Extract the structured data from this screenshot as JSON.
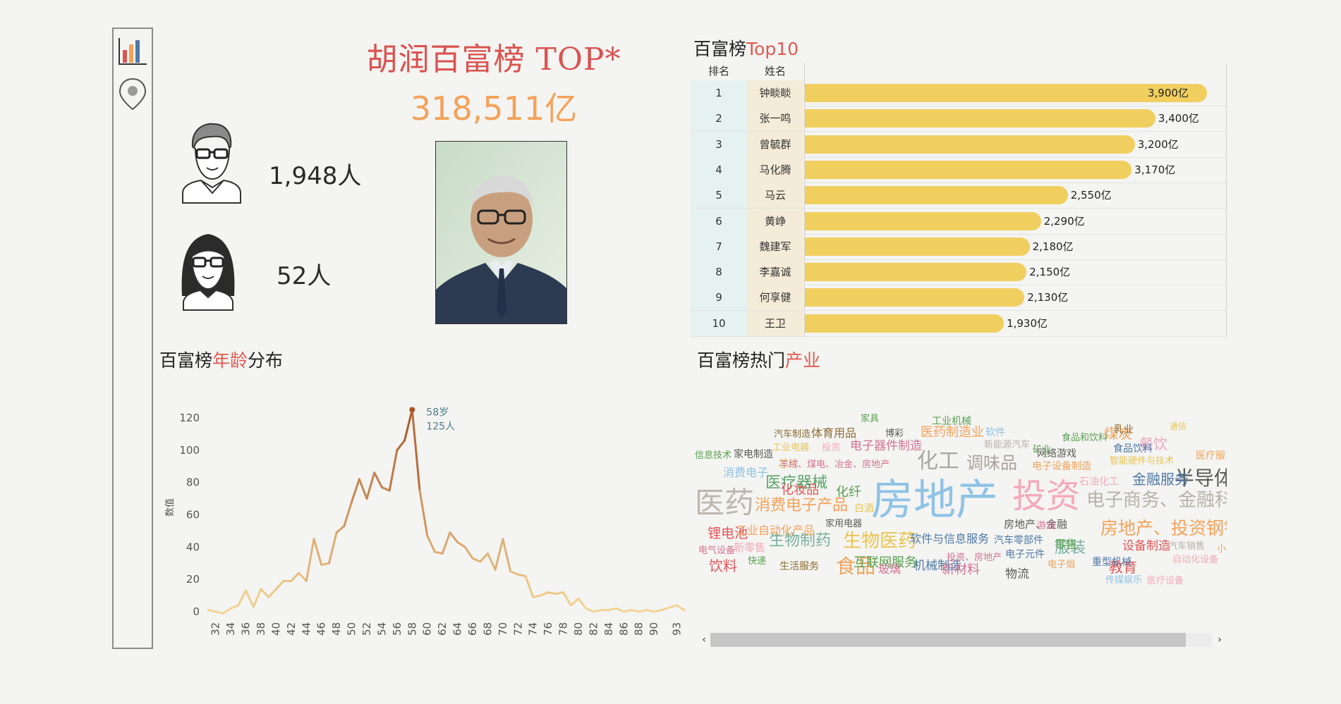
{
  "sidebar": {
    "items": [
      {
        "icon": "bar-chart-icon"
      },
      {
        "icon": "location-pin-icon"
      }
    ]
  },
  "header": {
    "title": "胡润百富榜 TOP*",
    "total": "318,511亿"
  },
  "gender": {
    "male_count": "1,948人",
    "female_count": "52人"
  },
  "top10": {
    "title_prefix": "百富榜",
    "title_highlight": "Top10",
    "col_rank": "排名",
    "col_name": "姓名",
    "rows": [
      {
        "rank": "1",
        "name": "钟睒睒",
        "value": 3900,
        "label": "3,900亿"
      },
      {
        "rank": "2",
        "name": "张一鸣",
        "value": 3400,
        "label": "3,400亿"
      },
      {
        "rank": "3",
        "name": "曾毓群",
        "value": 3200,
        "label": "3,200亿"
      },
      {
        "rank": "4",
        "name": "马化腾",
        "value": 3170,
        "label": "3,170亿"
      },
      {
        "rank": "5",
        "name": "马云",
        "value": 2550,
        "label": "2,550亿"
      },
      {
        "rank": "6",
        "name": "黄峥",
        "value": 2290,
        "label": "2,290亿"
      },
      {
        "rank": "7",
        "name": "魏建军",
        "value": 2180,
        "label": "2,180亿"
      },
      {
        "rank": "8",
        "name": "李嘉诚",
        "value": 2150,
        "label": "2,150亿"
      },
      {
        "rank": "9",
        "name": "何享健",
        "value": 2130,
        "label": "2,130亿"
      },
      {
        "rank": "10",
        "name": "王卫",
        "value": 1930,
        "label": "1,930亿"
      }
    ],
    "bar_color": "#f0cf5f"
  },
  "age_section": {
    "title_prefix": "百富榜",
    "title_highlight": "年龄",
    "title_suffix": "分布"
  },
  "industry_section": {
    "title_prefix": "百富榜热门",
    "title_highlight": "产业"
  },
  "chart_data": {
    "type": "line",
    "ylabel": "数值",
    "ylim": [
      0,
      130
    ],
    "yticks": [
      0,
      20,
      40,
      60,
      80,
      100,
      120
    ],
    "xticks": [
      "32",
      "34",
      "36",
      "38",
      "40",
      "42",
      "44",
      "46",
      "48",
      "50",
      "52",
      "54",
      "56",
      "58",
      "60",
      "62",
      "64",
      "66",
      "68",
      "70",
      "72",
      "74",
      "76",
      "78",
      "80",
      "82",
      "84",
      "86",
      "88",
      "90",
      "93"
    ],
    "x": [
      "31",
      "32",
      "33",
      "34",
      "35",
      "36",
      "37",
      "38",
      "39",
      "40",
      "41",
      "42",
      "43",
      "44",
      "45",
      "46",
      "47",
      "48",
      "49",
      "50",
      "51",
      "52",
      "53",
      "54",
      "55",
      "56",
      "57",
      "58",
      "59",
      "60",
      "61",
      "62",
      "63",
      "64",
      "65",
      "66",
      "67",
      "68",
      "69",
      "70",
      "71",
      "72",
      "73",
      "74",
      "75",
      "76",
      "77",
      "78",
      "79",
      "80",
      "81",
      "82",
      "83",
      "84",
      "85",
      "86",
      "87",
      "88",
      "89",
      "90",
      "91",
      "93",
      "94"
    ],
    "values": [
      1,
      0,
      -1,
      2,
      4,
      13,
      3,
      14,
      9,
      14,
      19,
      19,
      24,
      19,
      45,
      29,
      30,
      49,
      53,
      68,
      82,
      70,
      86,
      77,
      75,
      100,
      106,
      125,
      75,
      47,
      37,
      36,
      49,
      43,
      40,
      33,
      31,
      36,
      26,
      45,
      25,
      23,
      22,
      9,
      10,
      12,
      11,
      12,
      4,
      8,
      2,
      0,
      1,
      1,
      2,
      0,
      1,
      0,
      1,
      0,
      1,
      4,
      1
    ],
    "annotation": {
      "age": "58岁",
      "count": "125人"
    },
    "grid": false
  },
  "wordcloud": [
    {
      "text": "房地产",
      "size": 60,
      "color": "#8ec3e6"
    },
    {
      "text": "投资",
      "size": 48,
      "color": "#f4a9b8"
    },
    {
      "text": "医药",
      "size": 42,
      "color": "#bdb6ae"
    },
    {
      "text": "化工",
      "size": 30,
      "color": "#a7a7a7"
    },
    {
      "text": "调味品",
      "size": 24,
      "color": "#a9a49c"
    },
    {
      "text": "半导体",
      "size": 28,
      "color": "#5a5a5a"
    },
    {
      "text": "生物医药",
      "size": 26,
      "color": "#e9c550"
    },
    {
      "text": "食品",
      "size": 28,
      "color": "#f0a35a"
    },
    {
      "text": "电子商务、金融科技",
      "size": 26,
      "color": "#b8b2ab"
    },
    {
      "text": "房地产、投资钢铁",
      "size": 25,
      "color": "#f4a259"
    },
    {
      "text": "医疗器械",
      "size": 22,
      "color": "#5aa469"
    },
    {
      "text": "消费电子产品",
      "size": 22,
      "color": "#f4a259"
    },
    {
      "text": "生物制药",
      "size": 22,
      "color": "#7ab0a0"
    },
    {
      "text": "服装",
      "size": 22,
      "color": "#7ab0a0"
    },
    {
      "text": "煤炭",
      "size": 20,
      "color": "#f0a35a"
    },
    {
      "text": "金融服务",
      "size": 20,
      "color": "#4e79a7"
    },
    {
      "text": "餐饮",
      "size": 20,
      "color": "#e9a8c0"
    },
    {
      "text": "教育",
      "size": 20,
      "color": "#e15759"
    },
    {
      "text": "锂电池",
      "size": 19,
      "color": "#e15759"
    },
    {
      "text": "化纤",
      "size": 18,
      "color": "#59a14f"
    },
    {
      "text": "医药制造业",
      "size": 18,
      "color": "#f4a259"
    },
    {
      "text": "电子器件制造",
      "size": 17,
      "color": "#d37295"
    },
    {
      "text": "饮料",
      "size": 20,
      "color": "#e15759"
    },
    {
      "text": "化妆品",
      "size": 18,
      "color": "#e15759"
    },
    {
      "text": "互联网服务",
      "size": 18,
      "color": "#59a14f"
    },
    {
      "text": "机械制造",
      "size": 17,
      "color": "#4e79a7"
    },
    {
      "text": "新材料",
      "size": 18,
      "color": "#d37295"
    },
    {
      "text": "软件与信息服务",
      "size": 16,
      "color": "#4e79a7"
    },
    {
      "text": "体育用品",
      "size": 16,
      "color": "#8c6d31"
    },
    {
      "text": "玻璃",
      "size": 16,
      "color": "#d37295"
    },
    {
      "text": "物流",
      "size": 17,
      "color": "#5a5a5a"
    },
    {
      "text": "设备制造",
      "size": 17,
      "color": "#e15759"
    },
    {
      "text": "工业自动化产品",
      "size": 16,
      "color": "#f4a259"
    },
    {
      "text": "零售",
      "size": 16,
      "color": "#59a14f"
    },
    {
      "text": "消费电子",
      "size": 16,
      "color": "#8ec3e6"
    },
    {
      "text": "网络游戏",
      "size": 14,
      "color": "#5a5a5a"
    },
    {
      "text": "食品饮料",
      "size": 14,
      "color": "#4e79a7"
    },
    {
      "text": "汽车零部件",
      "size": 14,
      "color": "#4e79a7"
    },
    {
      "text": "重型机械",
      "size": 14,
      "color": "#4e79a7"
    },
    {
      "text": "电子元件",
      "size": 14,
      "color": "#4e79a7"
    },
    {
      "text": "房地产、金融",
      "size": 15,
      "color": "#5a5a5a"
    },
    {
      "text": "家电制造",
      "size": 14,
      "color": "#5a5a5a"
    },
    {
      "text": "工业机械",
      "size": 14,
      "color": "#59a14f"
    },
    {
      "text": "新零售",
      "size": 15,
      "color": "#f4a9b8"
    },
    {
      "text": "生活服务",
      "size": 14,
      "color": "#8c6d31"
    },
    {
      "text": "白酒",
      "size": 14,
      "color": "#e9c550"
    },
    {
      "text": "家用电器",
      "size": 13,
      "color": "#5a5a5a"
    },
    {
      "text": "芯片",
      "size": 14,
      "color": "#e9c550"
    },
    {
      "text": "汽车制造",
      "size": 13,
      "color": "#8c6d31"
    },
    {
      "text": "信息技术",
      "size": 13,
      "color": "#59a14f"
    },
    {
      "text": "电子设备制造",
      "size": 14,
      "color": "#f0a35a"
    },
    {
      "text": "新能源汽车",
      "size": 13,
      "color": "#b8b2ab"
    },
    {
      "text": "食品和饮料",
      "size": 13,
      "color": "#59a14f"
    },
    {
      "text": "智能硬件与技术",
      "size": 13,
      "color": "#e9c550"
    },
    {
      "text": "石油化工",
      "size": 14,
      "color": "#f4a9b8"
    },
    {
      "text": "医疗服",
      "size": 14,
      "color": "#f0a35a"
    },
    {
      "text": "投资、房地产",
      "size": 13,
      "color": "#d37295"
    },
    {
      "text": "羊绒、煤电、冶金、房地产",
      "size": 13,
      "color": "#d37295"
    },
    {
      "text": "电子烟",
      "size": 13,
      "color": "#f0a35a"
    },
    {
      "text": "传媒娱乐",
      "size": 13,
      "color": "#8ec3e6"
    },
    {
      "text": "医疗设备",
      "size": 13,
      "color": "#f4a9b8"
    },
    {
      "text": "自动化设备",
      "size": 13,
      "color": "#f4a9b8"
    },
    {
      "text": "汽车销售",
      "size": 13,
      "color": "#b8b2ab"
    },
    {
      "text": "电气设备",
      "size": 13,
      "color": "#d37295"
    },
    {
      "text": "快递",
      "size": 13,
      "color": "#59a14f"
    },
    {
      "text": "家具",
      "size": 13,
      "color": "#59a14f"
    },
    {
      "text": "博彩",
      "size": 13,
      "color": "#5a5a5a"
    },
    {
      "text": "软件",
      "size": 14,
      "color": "#8ec3e6"
    },
    {
      "text": "矿业",
      "size": 13,
      "color": "#59a14f"
    },
    {
      "text": "乳业",
      "size": 14,
      "color": "#8c6d31"
    },
    {
      "text": "通信",
      "size": 12,
      "color": "#e9c550"
    },
    {
      "text": "游戏",
      "size": 13,
      "color": "#d37295"
    },
    {
      "text": "工业电器",
      "size": 13,
      "color": "#e9c550"
    },
    {
      "text": "投资",
      "size": 13,
      "color": "#f4a9b8"
    },
    {
      "text": "小",
      "size": 13,
      "color": "#f0a35a"
    }
  ],
  "scrollbar": {
    "left_arrow": "‹",
    "right_arrow": "›"
  }
}
